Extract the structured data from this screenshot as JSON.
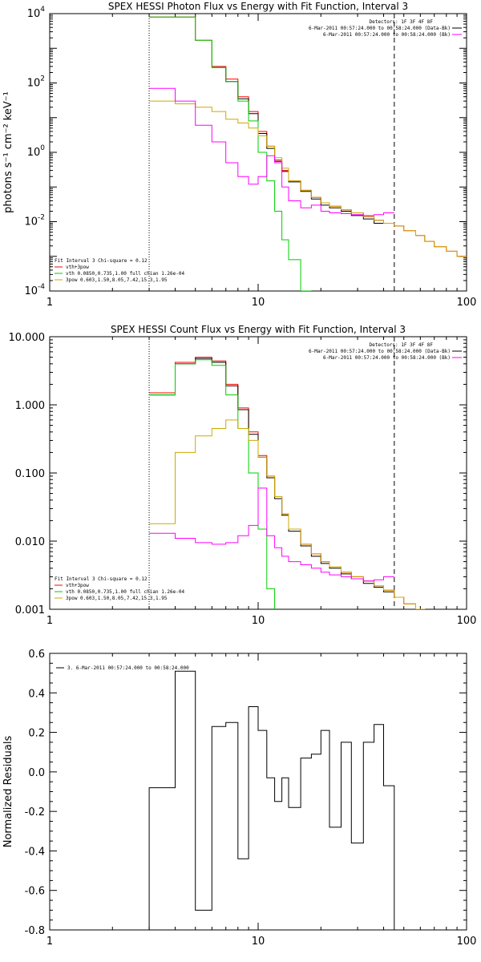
{
  "chart_data": [
    {
      "type": "line",
      "title": "SPEX HESSI Photon Flux vs Energy with Fit Function, Interval 3",
      "ylabel": "photons s⁻¹ cm⁻² keV⁻¹",
      "xscale": "log",
      "yscale": "log",
      "xlim": [
        1,
        100
      ],
      "ylim": [
        0.0001,
        10000
      ],
      "x_ticks": [
        "1",
        "10",
        "100"
      ],
      "y_ticks": [
        {
          "value": 0.0001,
          "base": "10",
          "exp": "-4"
        },
        {
          "value": 0.01,
          "base": "10",
          "exp": "-2"
        },
        {
          "value": 1,
          "base": "10",
          "exp": "0"
        },
        {
          "value": 100,
          "base": "10",
          "exp": "2"
        },
        {
          "value": 10000,
          "base": "10",
          "exp": "4"
        }
      ],
      "legend_top_right": {
        "header": "Detectors: 1F 3F 4F 8F",
        "entries": [
          {
            "text": "6-Mar-2011 00:57:24.000 to 00:58:24.000 (Data-Bk)",
            "color": "#000000"
          },
          {
            "text": "6-Mar-2011 00:57:24.000 to 00:58:24.000 (Bk)",
            "color": "#ff00ff"
          }
        ]
      },
      "legend_bottom_left": {
        "header": "Fit Interval 3   Chi-square = 0.12",
        "entries": [
          {
            "text": "vth+3pow",
            "color": "#ff0000"
          },
          {
            "text": "vth 0.0850,0.735,1.00  full chian 1.26e-04",
            "color": "#00cc00"
          },
          {
            "text": "3pow 0.603,1.50,8.05,7.42,15.3,1.95",
            "color": "#ccaa00"
          }
        ]
      },
      "markers": {
        "energy_low": 3,
        "energy_high": 45
      },
      "edges": [
        3.0,
        4.0,
        5.0,
        6.0,
        7.0,
        8.0,
        9.0,
        10.0,
        11.0,
        12.0,
        13.0,
        14.0,
        16.0,
        18.0,
        20.0,
        22.0,
        25.0,
        28.0,
        32.0,
        36.0,
        40.0,
        45.0,
        50.0,
        57.0,
        63.0,
        70.0,
        80.0,
        90.0,
        100.0
      ],
      "series": [
        {
          "name": "vth+3pow",
          "color": "#ff0000",
          "values": [
            8000,
            8000,
            1700,
            300,
            130,
            40,
            15,
            4,
            1.5,
            0.6,
            0.3,
            0.15,
            0.08,
            0.05,
            0.035,
            0.028,
            0.022,
            0.018,
            0.014,
            0.011,
            0.009,
            0.0075,
            0.0055,
            0.004,
            0.0027,
            0.0019,
            0.0014,
            0.001
          ]
        },
        {
          "name": "Data-Bk",
          "color": "#000000",
          "values": [
            null,
            null,
            null,
            280,
            110,
            35,
            13,
            3.5,
            1.3,
            0.55,
            0.28,
            0.14,
            0.075,
            0.045,
            0.03,
            0.025,
            0.02,
            0.015,
            0.012,
            0.009
          ]
        },
        {
          "name": "vth",
          "color": "#00cc00",
          "values": [
            8000,
            8000,
            1700,
            280,
            110,
            30,
            8,
            1.0,
            0.15,
            0.02,
            0.003,
            0.0008,
            0.0001
          ]
        },
        {
          "name": "3pow",
          "color": "#ccaa00",
          "values": [
            30,
            25,
            20,
            15,
            9,
            7,
            5,
            3,
            1.5,
            0.7,
            0.35,
            0.15,
            0.08,
            0.05,
            0.035,
            0.028,
            0.022,
            0.018,
            0.014,
            0.011,
            0.009,
            0.0075,
            0.0055,
            0.004,
            0.0027,
            0.0019,
            0.0014,
            0.001
          ]
        },
        {
          "name": "Bk",
          "color": "#ff00ff",
          "values": [
            70,
            30,
            6,
            2,
            0.5,
            0.2,
            0.12,
            0.2,
            0.8,
            0.5,
            0.1,
            0.04,
            0.025,
            0.03,
            0.02,
            0.018,
            0.017,
            0.016,
            0.015,
            0.016,
            0.018
          ]
        }
      ]
    },
    {
      "type": "line",
      "title": "SPEX HESSI Count Flux vs Energy with Fit Function, Interval 3",
      "ylabel": "",
      "xscale": "log",
      "yscale": "log",
      "xlim": [
        1,
        100
      ],
      "ylim": [
        0.001,
        10
      ],
      "x_ticks": [
        "1",
        "10",
        "100"
      ],
      "y_ticks": [
        {
          "value": 0.001,
          "label": "0.001"
        },
        {
          "value": 0.01,
          "label": "0.010"
        },
        {
          "value": 0.1,
          "label": "0.100"
        },
        {
          "value": 1,
          "label": "1.000"
        },
        {
          "value": 10,
          "label": "10.000"
        }
      ],
      "legend_top_right": {
        "header": "Detectors: 1F 3F 4F 8F",
        "entries": [
          {
            "text": "6-Mar-2011 00:57:24.000 to 00:58:24.000 (Data-Bk)",
            "color": "#000000"
          },
          {
            "text": "6-Mar-2011 00:57:24.000 to 00:58:24.000 (Bk)",
            "color": "#ff00ff"
          }
        ]
      },
      "legend_bottom_left": {
        "header": "Fit Interval 3   Chi-square = 0.12",
        "entries": [
          {
            "text": "vth+3pow",
            "color": "#ff0000"
          },
          {
            "text": "vth 0.0850,0.735,1.00  full chian 1.26e-04",
            "color": "#00cc00"
          },
          {
            "text": "3pow 0.603,1.50,8.05,7.42,15.3,1.95",
            "color": "#ccaa00"
          }
        ]
      },
      "markers": {
        "energy_low": 3,
        "energy_high": 45
      },
      "edges": [
        3.0,
        4.0,
        5.0,
        6.0,
        7.0,
        8.0,
        9.0,
        10.0,
        11.0,
        12.0,
        13.0,
        14.0,
        16.0,
        18.0,
        20.0,
        22.0,
        25.0,
        28.0,
        32.0,
        36.0,
        40.0,
        45.0,
        50.0,
        57.0,
        63.0,
        70.0
      ],
      "series": [
        {
          "name": "vth+3pow",
          "color": "#ff0000",
          "values": [
            1.5,
            4.2,
            5.0,
            4.4,
            2.0,
            0.9,
            0.4,
            0.18,
            0.09,
            0.045,
            0.025,
            0.015,
            0.009,
            0.0065,
            0.005,
            0.0042,
            0.0035,
            0.003,
            0.0026,
            0.0022,
            0.0019,
            0.0015,
            0.0012,
            0.001,
            0.0008
          ]
        },
        {
          "name": "Data-Bk",
          "color": "#000000",
          "values": [
            1.4,
            4.0,
            4.8,
            4.2,
            1.9,
            0.85,
            0.37,
            0.17,
            0.085,
            0.042,
            0.024,
            0.014,
            0.0085,
            0.006,
            0.0047,
            0.004,
            0.0033,
            0.0028,
            0.0024,
            0.0021,
            0.0018
          ]
        },
        {
          "name": "vth",
          "color": "#00cc00",
          "values": [
            1.4,
            4.0,
            4.6,
            3.8,
            1.4,
            0.45,
            0.1,
            0.015,
            0.002,
            0.0008
          ]
        },
        {
          "name": "3pow",
          "color": "#ccaa00",
          "values": [
            0.018,
            0.2,
            0.35,
            0.45,
            0.6,
            0.45,
            0.3,
            0.17,
            0.09,
            0.045,
            0.025,
            0.015,
            0.009,
            0.0065,
            0.005,
            0.0042,
            0.0035,
            0.003,
            0.0026,
            0.0022,
            0.0019,
            0.0015,
            0.0012,
            0.001,
            0.0008
          ]
        },
        {
          "name": "Bk",
          "color": "#ff00ff",
          "values": [
            0.013,
            0.011,
            0.0095,
            0.009,
            0.0095,
            0.012,
            0.017,
            0.06,
            0.012,
            0.008,
            0.006,
            0.005,
            0.0045,
            0.004,
            0.0035,
            0.0032,
            0.003,
            0.0028,
            0.0026,
            0.0027,
            0.003
          ]
        }
      ]
    },
    {
      "type": "line",
      "title": "",
      "ylabel": "Normalized Residuals",
      "xscale": "log",
      "yscale": "linear",
      "xlim": [
        1,
        100
      ],
      "ylim": [
        -0.8,
        0.6
      ],
      "x_ticks": [
        "1",
        "10",
        "100"
      ],
      "y_ticks": [
        {
          "value": 0.6,
          "label": "0.6"
        },
        {
          "value": 0.4,
          "label": "0.4"
        },
        {
          "value": 0.2,
          "label": "0.2"
        },
        {
          "value": 0.0,
          "label": "0.0"
        },
        {
          "value": -0.2,
          "label": "-0.2"
        },
        {
          "value": -0.4,
          "label": "-0.4"
        },
        {
          "value": -0.6,
          "label": "-0.6"
        },
        {
          "value": -0.8,
          "label": "-0.8"
        }
      ],
      "legend": {
        "text": "3.  6-Mar-2011 00:57:24.000 to 00:58:24.000",
        "color": "#000000"
      },
      "edges": [
        3.0,
        3.5,
        4.0,
        5.0,
        6.0,
        7.0,
        8.0,
        9.0,
        10.0,
        11.0,
        12.0,
        13.0,
        14.0,
        16.0,
        18.0,
        20.0,
        22.0,
        25.0,
        28.0,
        32.0,
        36.0,
        40.0,
        45.0
      ],
      "series": [
        {
          "name": "3.  6-Mar-2011 00:57:24.000 to 00:58:24.000",
          "color": "#000000",
          "values": [
            -0.08,
            -0.08,
            0.51,
            -0.7,
            0.23,
            0.25,
            -0.44,
            0.33,
            0.21,
            -0.03,
            -0.15,
            -0.03,
            -0.18,
            0.07,
            0.09,
            0.21,
            -0.28,
            0.15,
            -0.36,
            0.15,
            0.24,
            -0.07
          ]
        }
      ]
    }
  ]
}
